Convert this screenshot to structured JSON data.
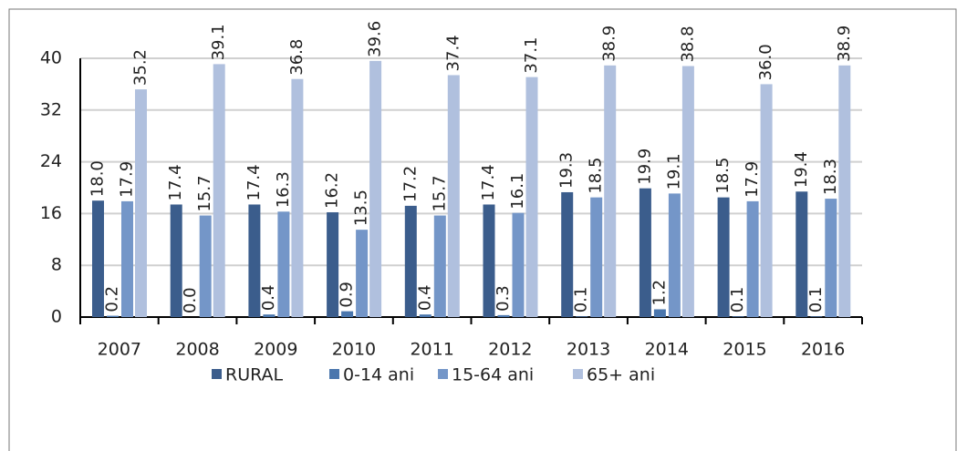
{
  "chart_data": {
    "type": "bar",
    "categories": [
      "2007",
      "2008",
      "2009",
      "2010",
      "2011",
      "2012",
      "2013",
      "2014",
      "2015",
      "2016"
    ],
    "series": [
      {
        "name": "RURAL",
        "color": "#3b5d8c",
        "values": [
          18.0,
          17.4,
          17.4,
          16.2,
          17.2,
          17.4,
          19.3,
          19.9,
          18.5,
          19.4
        ],
        "value_labels": [
          "18.0",
          "17.4",
          "17.4",
          "16.2",
          "17.2",
          "17.4",
          "19.3",
          "19.9",
          "18.5",
          "19.4"
        ]
      },
      {
        "name": "0-14 ani",
        "color": "#4a76ad",
        "values": [
          0.2,
          0.0,
          0.4,
          0.9,
          0.4,
          0.3,
          0.1,
          1.2,
          0.1,
          0.1
        ],
        "value_labels": [
          "0.2",
          "0.0",
          "0.4",
          "0.9",
          "0.4",
          "0.3",
          "0.1",
          "1.2",
          "0.1",
          "0.1"
        ]
      },
      {
        "name": "15-64 ani",
        "color": "#7496c8",
        "values": [
          17.9,
          15.7,
          16.3,
          13.5,
          15.7,
          16.1,
          18.5,
          19.1,
          17.9,
          18.3
        ],
        "value_labels": [
          "17.9",
          "15.7",
          "16.3",
          "13.5",
          "15.7",
          "16.1",
          "18.5",
          "19.1",
          "17.9",
          "18.3"
        ]
      },
      {
        "name": "65+ ani",
        "color": "#b0c0de",
        "values": [
          35.2,
          39.1,
          36.8,
          39.6,
          37.4,
          37.1,
          38.9,
          38.8,
          36.0,
          38.9
        ],
        "value_labels": [
          "35.2",
          "39.1",
          "36.8",
          "39.6",
          "37.4",
          "37.1",
          "38.9",
          "38.8",
          "36.0",
          "38.9"
        ]
      }
    ],
    "ylim": [
      0,
      40
    ],
    "yticks": [
      0,
      8,
      16,
      24,
      32,
      40
    ],
    "grid": true,
    "legend": "bottom"
  }
}
